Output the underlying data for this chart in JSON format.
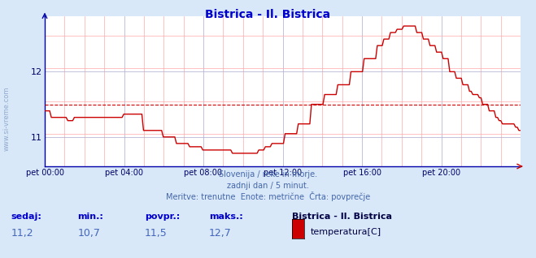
{
  "title": "Bistrica - Il. Bistrica",
  "title_color": "#0000cc",
  "bg_color": "#d8e8f8",
  "plot_bg_color": "#ffffff",
  "line_color": "#cc0000",
  "avg_line_color": "#cc0000",
  "avg_value": 11.5,
  "y_min": 10.55,
  "y_max": 12.85,
  "x_tick_labels": [
    "pet 00:00",
    "pet 04:00",
    "pet 08:00",
    "pet 12:00",
    "pet 16:00",
    "pet 20:00"
  ],
  "y_ticks": [
    11,
    12
  ],
  "subtitle1": "Slovenija / reke in morje.",
  "subtitle2": "zadnji dan / 5 minut.",
  "subtitle3": "Meritve: trenutne  Enote: metrične  Črta: povprečje",
  "footer_color": "#4466aa",
  "sedaj_label": "sedaj:",
  "min_label": "min.:",
  "povpr_label": "povpr.:",
  "maks_label": "maks.:",
  "sedaj_val": "11,2",
  "min_val": "10,7",
  "povpr_val": "11,5",
  "maks_val": "12,7",
  "legend_name": "Bistrica - Il. Bistrica",
  "legend_param": "temperatura[C]",
  "legend_color": "#cc0000",
  "watermark_color": "#5577aa",
  "temperature_data": [
    11.4,
    11.4,
    11.4,
    11.4,
    11.3,
    11.3,
    11.3,
    11.3,
    11.3,
    11.3,
    11.3,
    11.3,
    11.3,
    11.3,
    11.25,
    11.25,
    11.25,
    11.25,
    11.3,
    11.3,
    11.3,
    11.3,
    11.3,
    11.3,
    11.3,
    11.3,
    11.3,
    11.3,
    11.3,
    11.3,
    11.3,
    11.3,
    11.3,
    11.3,
    11.3,
    11.3,
    11.3,
    11.3,
    11.3,
    11.3,
    11.3,
    11.3,
    11.3,
    11.3,
    11.3,
    11.3,
    11.3,
    11.3,
    11.35,
    11.35,
    11.35,
    11.35,
    11.35,
    11.35,
    11.35,
    11.35,
    11.35,
    11.35,
    11.35,
    11.35,
    11.1,
    11.1,
    11.1,
    11.1,
    11.1,
    11.1,
    11.1,
    11.1,
    11.1,
    11.1,
    11.1,
    11.1,
    11.0,
    11.0,
    11.0,
    11.0,
    11.0,
    11.0,
    11.0,
    11.0,
    10.9,
    10.9,
    10.9,
    10.9,
    10.9,
    10.9,
    10.9,
    10.9,
    10.85,
    10.85,
    10.85,
    10.85,
    10.85,
    10.85,
    10.85,
    10.85,
    10.8,
    10.8,
    10.8,
    10.8,
    10.8,
    10.8,
    10.8,
    10.8,
    10.8,
    10.8,
    10.8,
    10.8,
    10.8,
    10.8,
    10.8,
    10.8,
    10.8,
    10.8,
    10.75,
    10.75,
    10.75,
    10.75,
    10.75,
    10.75,
    10.75,
    10.75,
    10.75,
    10.75,
    10.75,
    10.75,
    10.75,
    10.75,
    10.75,
    10.75,
    10.8,
    10.8,
    10.8,
    10.8,
    10.85,
    10.85,
    10.85,
    10.85,
    10.9,
    10.9,
    10.9,
    10.9,
    10.9,
    10.9,
    10.9,
    10.9,
    11.05,
    11.05,
    11.05,
    11.05,
    11.05,
    11.05,
    11.05,
    11.05,
    11.2,
    11.2,
    11.2,
    11.2,
    11.2,
    11.2,
    11.2,
    11.2,
    11.5,
    11.5,
    11.5,
    11.5,
    11.5,
    11.5,
    11.5,
    11.5,
    11.65,
    11.65,
    11.65,
    11.65,
    11.65,
    11.65,
    11.65,
    11.65,
    11.8,
    11.8,
    11.8,
    11.8,
    11.8,
    11.8,
    11.8,
    11.8,
    12.0,
    12.0,
    12.0,
    12.0,
    12.0,
    12.0,
    12.0,
    12.0,
    12.2,
    12.2,
    12.2,
    12.2,
    12.2,
    12.2,
    12.2,
    12.2,
    12.4,
    12.4,
    12.4,
    12.4,
    12.5,
    12.5,
    12.5,
    12.5,
    12.6,
    12.6,
    12.6,
    12.6,
    12.65,
    12.65,
    12.65,
    12.65,
    12.7,
    12.7,
    12.7,
    12.7,
    12.7,
    12.7,
    12.7,
    12.7,
    12.6,
    12.6,
    12.6,
    12.6,
    12.5,
    12.5,
    12.5,
    12.5,
    12.4,
    12.4,
    12.4,
    12.4,
    12.3,
    12.3,
    12.3,
    12.3,
    12.2,
    12.2,
    12.2,
    12.2,
    12.0,
    12.0,
    12.0,
    12.0,
    11.9,
    11.9,
    11.9,
    11.9,
    11.8,
    11.8,
    11.8,
    11.8,
    11.7,
    11.7,
    11.65,
    11.65,
    11.65,
    11.65,
    11.6,
    11.6,
    11.5,
    11.5,
    11.5,
    11.5,
    11.4,
    11.4,
    11.4,
    11.4,
    11.3,
    11.3,
    11.25,
    11.25,
    11.2,
    11.2,
    11.2,
    11.2,
    11.2,
    11.2,
    11.2,
    11.2,
    11.15,
    11.15,
    11.1,
    11.1
  ]
}
